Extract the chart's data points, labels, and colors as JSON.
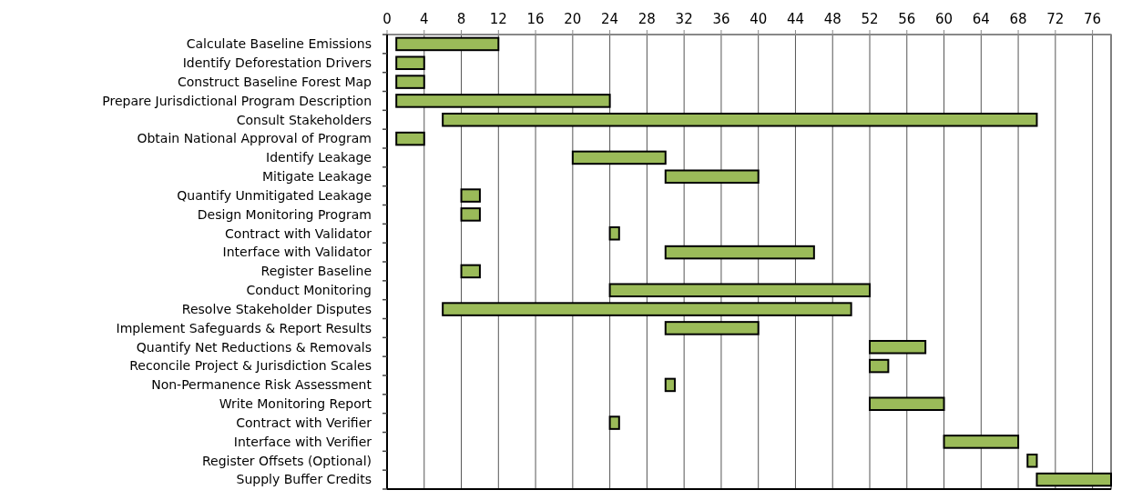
{
  "chart_data": {
    "type": "bar",
    "orientation": "horizontal",
    "categories": [
      "Calculate Baseline Emissions",
      "Identify Deforestation Drivers",
      "Construct Baseline Forest Map",
      "Prepare Jurisdictional Program Description",
      "Consult Stakeholders",
      "Obtain National Approval of Program",
      "Identify Leakage",
      "Mitigate Leakage",
      "Quantify Unmitigated Leakage",
      "Design Monitoring Program",
      "Contract with Validator",
      "Interface with Validator",
      "Register Baseline",
      "Conduct Monitoring",
      "Resolve Stakeholder Disputes",
      "Implement Safeguards & Report Results",
      "Quantify Net Reductions & Removals",
      "Reconcile Project & Jurisdiction Scales",
      "Non-Permanence Risk Assessment",
      "Write Monitoring Report",
      "Contract with Verifier",
      "Interface with Verifier",
      "Register Offsets (Optional)",
      "Supply Buffer Credits"
    ],
    "base": [
      1,
      1,
      1,
      1,
      6,
      1,
      20,
      30,
      8,
      8,
      24,
      30,
      8,
      24,
      6,
      30,
      52,
      52,
      30,
      52,
      24,
      60,
      69,
      70
    ],
    "values": [
      11,
      3,
      3,
      23,
      64,
      3,
      10,
      10,
      2,
      2,
      1,
      16,
      2,
      28,
      44,
      10,
      6,
      2,
      1,
      8,
      1,
      8,
      1,
      8
    ],
    "color": "#9bbb59",
    "xlim": [
      0,
      78
    ],
    "xticks": [
      0,
      4,
      8,
      12,
      16,
      20,
      24,
      28,
      32,
      36,
      40,
      44,
      48,
      52,
      56,
      60,
      64,
      68,
      72,
      76
    ],
    "grid": "x"
  }
}
